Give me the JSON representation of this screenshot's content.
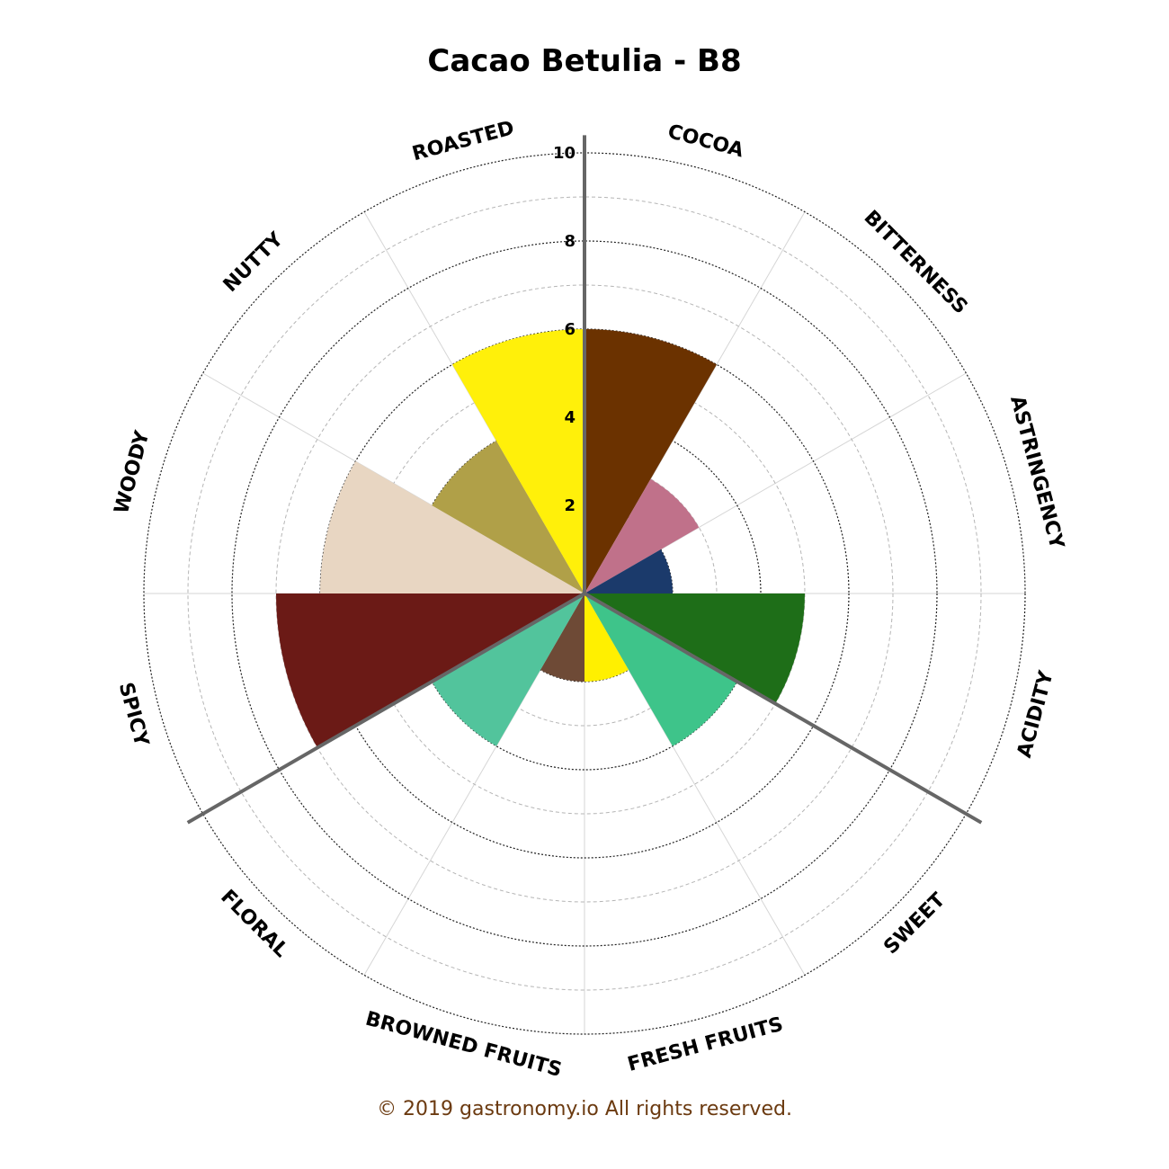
{
  "chart_data": {
    "type": "polar-bar",
    "title": "Cacao Betulia - B8",
    "categories": [
      "COCOA",
      "BITTERNESS",
      "ASTRINGENCY",
      "ACIDITY",
      "SWEET",
      "FRESH FRUITS",
      "BROWNED FRUITS",
      "FLORAL",
      "SPICY",
      "WOODY",
      "NUTTY",
      "ROASTED"
    ],
    "wedges": [
      {
        "name": "COCOA",
        "value": 6.0,
        "color": "#6b3200"
      },
      {
        "name": "BITTERNESS",
        "value": 3.0,
        "color": "#c0718a"
      },
      {
        "name": "ASTRINGENCY",
        "value": 2.0,
        "color": "#1b3a6b"
      },
      {
        "name": "ACIDITY",
        "value": 5.0,
        "color": "#1e6e18"
      },
      {
        "name": "SWEET",
        "value": 4.0,
        "color": "#3ec48a"
      },
      {
        "name": "FRESH FRUITS",
        "value": 2.0,
        "color": "#fff000"
      },
      {
        "name": "BROWNED FRUITS",
        "value": 2.0,
        "color": "#6e4a36"
      },
      {
        "name": "FLORAL",
        "value": 4.0,
        "color": "#52c49c"
      },
      {
        "name": "SPICY",
        "value": 7.0,
        "color": "#6b1a16"
      },
      {
        "name": "WOODY",
        "value": 6.0,
        "color": "#e8d6c2"
      },
      {
        "name": "NUTTY",
        "value": 4.0,
        "color": "#b0a048"
      },
      {
        "name": "ROASTED",
        "value": 6.0,
        "color": "#fff00a"
      }
    ],
    "rlim": [
      0,
      10
    ],
    "r_ticks": [
      2,
      4,
      6,
      8,
      10
    ],
    "grid": true,
    "highlight_lines": 3,
    "highlight_color": "#666666"
  },
  "footer": {
    "copyright": "© 2019 gastronomy.io All rights reserved."
  }
}
